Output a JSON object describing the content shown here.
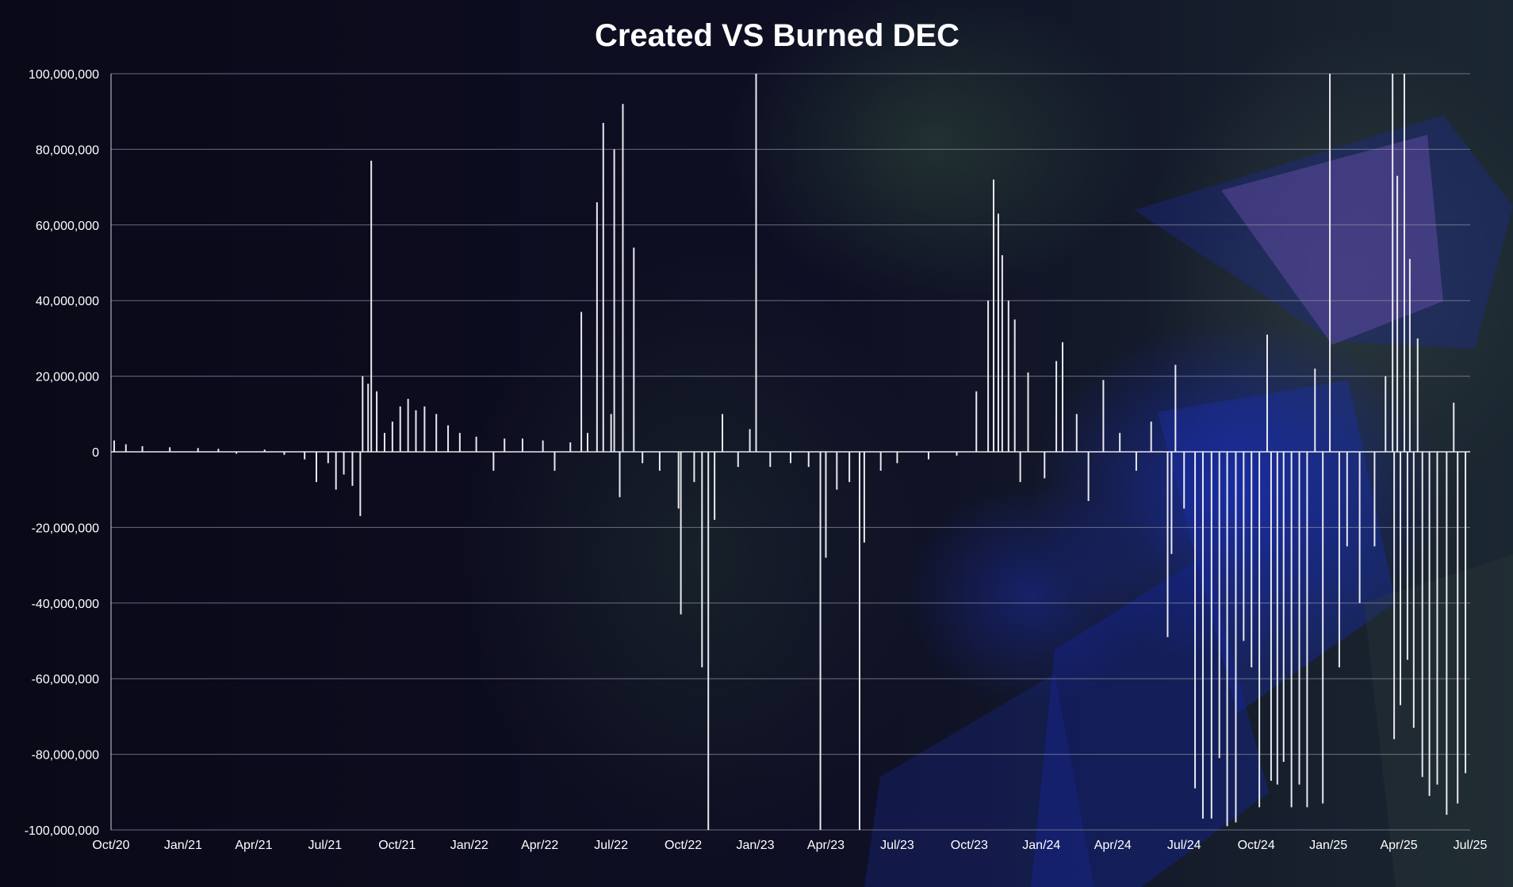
{
  "chart_data": {
    "type": "bar",
    "title": "Created VS Burned DEC",
    "xlabel": "",
    "ylabel": "",
    "ylim": [
      -100000000,
      100000000
    ],
    "y_ticks": [
      {
        "value": 100000000,
        "label": "100,000,000"
      },
      {
        "value": 80000000,
        "label": "80,000,000"
      },
      {
        "value": 60000000,
        "label": "60,000,000"
      },
      {
        "value": 40000000,
        "label": "40,000,000"
      },
      {
        "value": 20000000,
        "label": "20,000,000"
      },
      {
        "value": 0,
        "label": "0"
      },
      {
        "value": -20000000,
        "label": "-20,000,000"
      },
      {
        "value": -40000000,
        "label": "-40,000,000"
      },
      {
        "value": -60000000,
        "label": "-60,000,000"
      },
      {
        "value": -80000000,
        "label": "-80,000,000"
      },
      {
        "value": -100000000,
        "label": "-100,000,000"
      }
    ],
    "x_range": [
      "2020-10-01",
      "2025-07-01"
    ],
    "x_ticks": [
      {
        "date": "2020-10-01",
        "label": "Oct/20"
      },
      {
        "date": "2021-01-01",
        "label": "Jan/21"
      },
      {
        "date": "2021-04-01",
        "label": "Apr/21"
      },
      {
        "date": "2021-07-01",
        "label": "Jul/21"
      },
      {
        "date": "2021-10-01",
        "label": "Oct/21"
      },
      {
        "date": "2022-01-01",
        "label": "Jan/22"
      },
      {
        "date": "2022-04-01",
        "label": "Apr/22"
      },
      {
        "date": "2022-07-01",
        "label": "Jul/22"
      },
      {
        "date": "2022-10-01",
        "label": "Oct/22"
      },
      {
        "date": "2023-01-01",
        "label": "Jan/23"
      },
      {
        "date": "2023-04-01",
        "label": "Apr/23"
      },
      {
        "date": "2023-07-01",
        "label": "Jul/23"
      },
      {
        "date": "2023-10-01",
        "label": "Oct/23"
      },
      {
        "date": "2024-01-01",
        "label": "Jan/24"
      },
      {
        "date": "2024-04-01",
        "label": "Apr/24"
      },
      {
        "date": "2024-07-01",
        "label": "Jul/24"
      },
      {
        "date": "2024-10-01",
        "label": "Oct/24"
      },
      {
        "date": "2025-01-01",
        "label": "Jan/25"
      },
      {
        "date": "2025-04-01",
        "label": "Apr/25"
      },
      {
        "date": "2025-07-01",
        "label": "Jul/25"
      }
    ],
    "grid": true,
    "legend": "none",
    "bar_color": "#e8e8ee",
    "gridline_color": "#8a8aa0",
    "series": [
      {
        "points": [
          [
            "2020-10-05",
            3000000
          ],
          [
            "2020-10-20",
            2000000
          ],
          [
            "2020-11-10",
            1500000
          ],
          [
            "2020-12-15",
            1200000
          ],
          [
            "2021-01-20",
            1000000
          ],
          [
            "2021-02-15",
            800000
          ],
          [
            "2021-03-10",
            -500000
          ],
          [
            "2021-04-15",
            600000
          ],
          [
            "2021-05-10",
            -800000
          ],
          [
            "2021-06-05",
            -2000000
          ],
          [
            "2021-06-20",
            -8000000
          ],
          [
            "2021-07-05",
            -3000000
          ],
          [
            "2021-07-15",
            -10000000
          ],
          [
            "2021-07-25",
            -6000000
          ],
          [
            "2021-08-05",
            -9000000
          ],
          [
            "2021-08-15",
            -17000000
          ],
          [
            "2021-08-18",
            20000000
          ],
          [
            "2021-08-25",
            18000000
          ],
          [
            "2021-08-29",
            77000000
          ],
          [
            "2021-09-05",
            16000000
          ],
          [
            "2021-09-15",
            5000000
          ],
          [
            "2021-09-25",
            8000000
          ],
          [
            "2021-10-05",
            12000000
          ],
          [
            "2021-10-15",
            14000000
          ],
          [
            "2021-10-25",
            11000000
          ],
          [
            "2021-11-05",
            12000000
          ],
          [
            "2021-11-20",
            10000000
          ],
          [
            "2021-12-05",
            7000000
          ],
          [
            "2021-12-20",
            5000000
          ],
          [
            "2022-01-10",
            4000000
          ],
          [
            "2022-02-01",
            -5000000
          ],
          [
            "2022-02-15",
            3500000
          ],
          [
            "2022-03-10",
            3500000
          ],
          [
            "2022-04-05",
            3000000
          ],
          [
            "2022-04-20",
            -5000000
          ],
          [
            "2022-05-10",
            2500000
          ],
          [
            "2022-05-24",
            37000000
          ],
          [
            "2022-06-01",
            5000000
          ],
          [
            "2022-06-13",
            66000000
          ],
          [
            "2022-06-21",
            87000000
          ],
          [
            "2022-07-01",
            10000000
          ],
          [
            "2022-07-05",
            80000000
          ],
          [
            "2022-07-12",
            -12000000
          ],
          [
            "2022-07-16",
            92000000
          ],
          [
            "2022-07-30",
            54000000
          ],
          [
            "2022-08-10",
            -3000000
          ],
          [
            "2022-09-01",
            -5000000
          ],
          [
            "2022-09-25",
            -15000000
          ],
          [
            "2022-09-28",
            -43000000
          ],
          [
            "2022-10-15",
            -8000000
          ],
          [
            "2022-10-25",
            -57000000
          ],
          [
            "2022-11-02",
            -100000000
          ],
          [
            "2022-11-10",
            -18000000
          ],
          [
            "2022-11-20",
            10000000
          ],
          [
            "2022-12-10",
            -4000000
          ],
          [
            "2022-12-25",
            6000000
          ],
          [
            "2023-01-02",
            100000000
          ],
          [
            "2023-01-20",
            -4000000
          ],
          [
            "2023-02-15",
            -3000000
          ],
          [
            "2023-03-10",
            -4000000
          ],
          [
            "2023-03-25",
            -100000000
          ],
          [
            "2023-04-01",
            -28000000
          ],
          [
            "2023-04-15",
            -10000000
          ],
          [
            "2023-05-01",
            -8000000
          ],
          [
            "2023-05-14",
            -100000000
          ],
          [
            "2023-05-20",
            -24000000
          ],
          [
            "2023-06-10",
            -5000000
          ],
          [
            "2023-07-01",
            -3000000
          ],
          [
            "2023-08-10",
            -2000000
          ],
          [
            "2023-09-15",
            -1000000
          ],
          [
            "2023-10-10",
            16000000
          ],
          [
            "2023-10-25",
            40000000
          ],
          [
            "2023-11-01",
            72000000
          ],
          [
            "2023-11-07",
            63000000
          ],
          [
            "2023-11-12",
            52000000
          ],
          [
            "2023-11-20",
            40000000
          ],
          [
            "2023-11-28",
            35000000
          ],
          [
            "2023-12-05",
            -8000000
          ],
          [
            "2023-12-15",
            21000000
          ],
          [
            "2024-01-05",
            -7000000
          ],
          [
            "2024-01-20",
            24000000
          ],
          [
            "2024-01-28",
            29000000
          ],
          [
            "2024-02-15",
            10000000
          ],
          [
            "2024-03-01",
            -13000000
          ],
          [
            "2024-03-20",
            19000000
          ],
          [
            "2024-04-10",
            5000000
          ],
          [
            "2024-05-01",
            -5000000
          ],
          [
            "2024-05-20",
            8000000
          ],
          [
            "2024-06-10",
            -49000000
          ],
          [
            "2024-06-15",
            -27000000
          ],
          [
            "2024-06-20",
            23000000
          ],
          [
            "2024-07-01",
            -15000000
          ],
          [
            "2024-07-15",
            -89000000
          ],
          [
            "2024-07-25",
            -97000000
          ],
          [
            "2024-08-05",
            -97000000
          ],
          [
            "2024-08-15",
            -81000000
          ],
          [
            "2024-08-25",
            -99000000
          ],
          [
            "2024-09-05",
            -98000000
          ],
          [
            "2024-09-15",
            -50000000
          ],
          [
            "2024-09-25",
            -57000000
          ],
          [
            "2024-10-05",
            -94000000
          ],
          [
            "2024-10-15",
            31000000
          ],
          [
            "2024-10-20",
            -87000000
          ],
          [
            "2024-10-28",
            -88000000
          ],
          [
            "2024-11-05",
            -82000000
          ],
          [
            "2024-11-15",
            -94000000
          ],
          [
            "2024-11-25",
            -88000000
          ],
          [
            "2024-12-05",
            -94000000
          ],
          [
            "2024-12-15",
            22000000
          ],
          [
            "2024-12-25",
            -93000000
          ],
          [
            "2025-01-03",
            100000000
          ],
          [
            "2025-01-15",
            -57000000
          ],
          [
            "2025-01-25",
            -25000000
          ],
          [
            "2025-02-10",
            -40000000
          ],
          [
            "2025-03-01",
            -25000000
          ],
          [
            "2025-03-15",
            20000000
          ],
          [
            "2025-03-24",
            100000000
          ],
          [
            "2025-03-26",
            -76000000
          ],
          [
            "2025-03-30",
            73000000
          ],
          [
            "2025-04-03",
            -67000000
          ],
          [
            "2025-04-08",
            100000000
          ],
          [
            "2025-04-12",
            -55000000
          ],
          [
            "2025-04-15",
            51000000
          ],
          [
            "2025-04-20",
            -73000000
          ],
          [
            "2025-04-25",
            30000000
          ],
          [
            "2025-05-01",
            -86000000
          ],
          [
            "2025-05-10",
            -91000000
          ],
          [
            "2025-05-20",
            -88000000
          ],
          [
            "2025-06-01",
            -96000000
          ],
          [
            "2025-06-10",
            13000000
          ],
          [
            "2025-06-15",
            -93000000
          ],
          [
            "2025-06-25",
            -85000000
          ]
        ]
      }
    ]
  }
}
